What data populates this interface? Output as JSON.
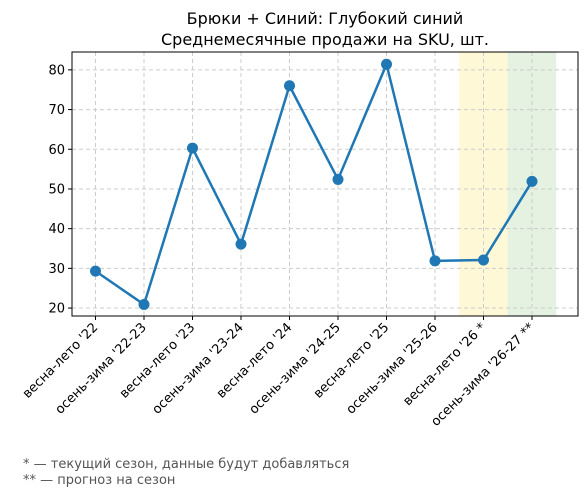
{
  "chart_data": {
    "type": "line",
    "title": "Брюки + Синий: Глубокий синий",
    "subtitle": "Среднемесячные продажи на SKU, шт.",
    "xlabel": "",
    "ylabel": "",
    "categories": [
      "весна-лето '22",
      "осень-зима '22-23",
      "весна-лето '23",
      "осень-зима '23-24",
      "весна-лето '24",
      "осень-зима '24-25",
      "весна-лето '25",
      "осень-зима '25-26",
      "весна-лето '26 *",
      "осень-зима '26-27 **"
    ],
    "series": [
      {
        "values": [
          29.3,
          20.9,
          60.3,
          36.1,
          76.0,
          52.4,
          81.4,
          31.9,
          32.1,
          51.9
        ],
        "color": "#1f77b4"
      }
    ],
    "ylim": [
      18,
      84.5
    ],
    "yticks": [
      20,
      30,
      40,
      50,
      60,
      70,
      80
    ],
    "grid": true,
    "highlight_bands": [
      {
        "category": "весна-лето '26 *",
        "color": "#fff8d6",
        "meaning": "current season"
      },
      {
        "category": "осень-зима '26-27 **",
        "color": "#e5f2e1",
        "meaning": "forecast"
      }
    ]
  },
  "footnotes": [
    "* — текущий сезон, данные будут добавляться",
    "** — прогноз на сезон"
  ]
}
